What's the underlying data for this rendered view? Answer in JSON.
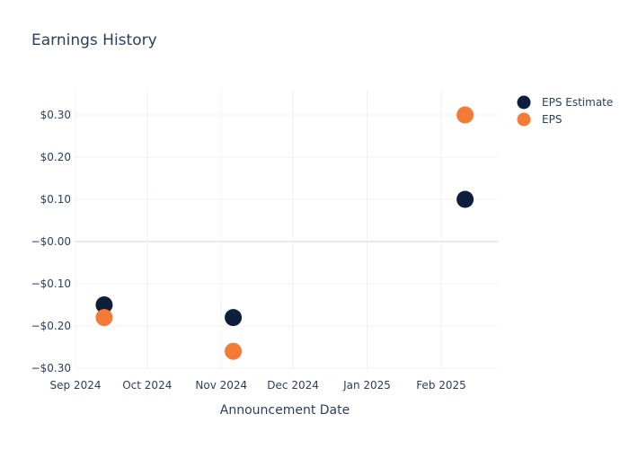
{
  "chart_data": {
    "type": "scatter",
    "title": "Earnings History",
    "xlabel": "Announcement Date",
    "ylabel": "",
    "x_ticks": [
      "Sep 2024",
      "Oct 2024",
      "Nov 2024",
      "Dec 2024",
      "Jan 2025",
      "Feb 2025"
    ],
    "y_ticks": [
      "$0.30",
      "$0.20",
      "$0.10",
      "−$0.00",
      "−$0.10",
      "−$0.20",
      "−$0.30"
    ],
    "ylim": [
      -0.3,
      0.3
    ],
    "grid": true,
    "legend_position": "top-right",
    "series": [
      {
        "name": "EPS Estimate",
        "color": "#0d1f3d",
        "points": [
          {
            "x": "2024-09-13",
            "y": -0.15
          },
          {
            "x": "2024-11-06",
            "y": -0.18
          },
          {
            "x": "2025-02-11",
            "y": 0.1
          }
        ]
      },
      {
        "name": "EPS",
        "color": "#f47b35",
        "points": [
          {
            "x": "2024-09-13",
            "y": -0.18
          },
          {
            "x": "2024-11-06",
            "y": -0.26
          },
          {
            "x": "2025-02-11",
            "y": 0.3
          }
        ]
      }
    ]
  }
}
